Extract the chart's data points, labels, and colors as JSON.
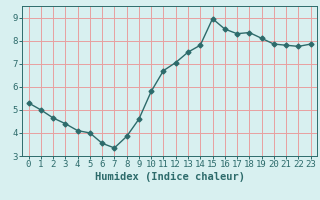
{
  "x": [
    0,
    1,
    2,
    3,
    4,
    5,
    6,
    7,
    8,
    9,
    10,
    11,
    12,
    13,
    14,
    15,
    16,
    17,
    18,
    19,
    20,
    21,
    22,
    23
  ],
  "y": [
    5.3,
    5.0,
    4.65,
    4.4,
    4.1,
    4.0,
    3.55,
    3.35,
    3.85,
    4.6,
    5.8,
    6.7,
    7.05,
    7.5,
    7.8,
    8.95,
    8.5,
    8.3,
    8.35,
    8.1,
    7.85,
    7.8,
    7.75,
    7.85
  ],
  "line_color": "#2d6b6b",
  "marker": "D",
  "marker_size": 2.5,
  "bg_color": "#d8f0f0",
  "grid_color": "#e8a0a0",
  "axis_color": "#2d6b6b",
  "xlabel": "Humidex (Indice chaleur)",
  "xlim": [
    -0.5,
    23.5
  ],
  "ylim": [
    3.0,
    9.5
  ],
  "yticks": [
    3,
    4,
    5,
    6,
    7,
    8,
    9
  ],
  "xticks": [
    0,
    1,
    2,
    3,
    4,
    5,
    6,
    7,
    8,
    9,
    10,
    11,
    12,
    13,
    14,
    15,
    16,
    17,
    18,
    19,
    20,
    21,
    22,
    23
  ],
  "xlabel_fontsize": 7.5,
  "tick_fontsize": 6.5,
  "line_width": 1.0
}
